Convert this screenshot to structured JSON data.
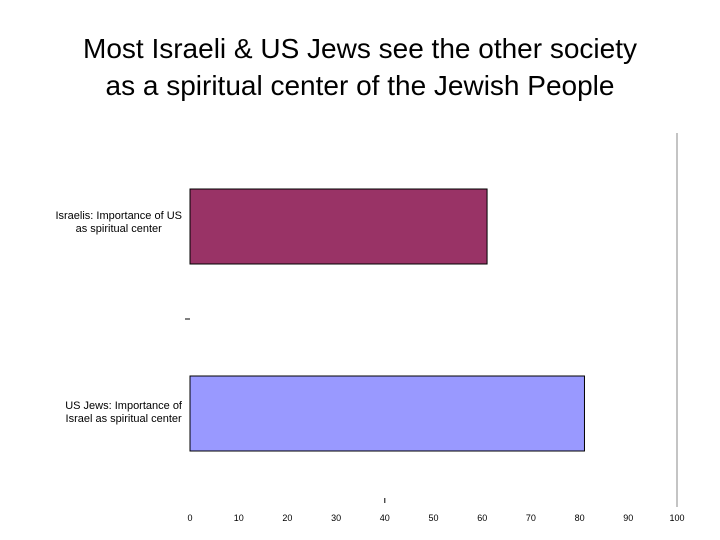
{
  "slide": {
    "title_line1": "Most Israeli & US Jews see the other society",
    "title_line2": "as a spiritual center of the Jewish People"
  },
  "chart_data": {
    "type": "bar",
    "orientation": "horizontal",
    "title": "",
    "xlabel": "",
    "ylabel": "",
    "xlim": [
      0,
      100
    ],
    "x_ticks": [
      "0",
      "10",
      "20",
      "30",
      "40",
      "50",
      "60",
      "70",
      "80",
      "90",
      "100"
    ],
    "grid": false,
    "legend": "none",
    "categories": [
      {
        "line1": "Israelis: Importance of US",
        "line2": "as spiritual center"
      },
      {
        "line1": "US Jews: Importance of",
        "line2": "Israel as spiritual center"
      }
    ],
    "values": [
      61,
      81
    ],
    "colors": [
      "#993366",
      "#9999ff"
    ]
  }
}
